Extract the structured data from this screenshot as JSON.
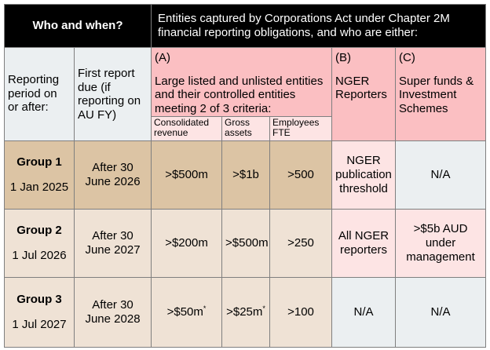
{
  "header": {
    "who": "Who and when?",
    "entities_line1": "Entities captured by Corporations Act under Chapter 2M",
    "entities_line2": "financial reporting obligations, and who are either:"
  },
  "columns": {
    "reporting_period": "Reporting period on or after:",
    "first_report": "First report due (if reporting on AU FY)",
    "a_label": "(A)",
    "a_desc": "Large listed and unlisted entities and their controlled entities meeting 2 of 3 criteria:",
    "b_label": "(B)",
    "b_desc": "NGER Reporters",
    "c_label": "(C)",
    "c_desc": "Super funds & Investment Schemes",
    "sub_revenue": "Consolidated revenue",
    "sub_assets": "Gross assets",
    "sub_employees": "Employees FTE"
  },
  "rows": [
    {
      "group": "Group 1",
      "date": "1 Jan 2025",
      "first_report": "After 30 June 2026",
      "revenue": ">$500m",
      "revenue_mark": "",
      "assets": ">$1b",
      "assets_mark": "",
      "employees": ">500",
      "nger": "NGER publication threshold",
      "super": "N/A"
    },
    {
      "group": "Group 2",
      "date": "1 Jul 2026",
      "first_report": "After 30 June 2027",
      "revenue": ">$200m",
      "revenue_mark": "",
      "assets": ">$500m",
      "assets_mark": "",
      "employees": ">250",
      "nger": "All NGER reporters",
      "super": ">$5b AUD under management"
    },
    {
      "group": "Group 3",
      "date": "1 Jul 2027",
      "first_report": "After 30 June 2028",
      "revenue": ">$50m",
      "revenue_mark": "*",
      "assets": ">$25m",
      "assets_mark": "*",
      "employees": ">100",
      "nger": "N/A",
      "super": "N/A"
    }
  ],
  "colors": {
    "header_black": "#000000",
    "pink_header": "#fbbfc2",
    "pink_light": "#fde4e4",
    "grey_light": "#ebeff1",
    "group1_tan": "#dcc4a4",
    "group_beige": "#efe2d5"
  }
}
